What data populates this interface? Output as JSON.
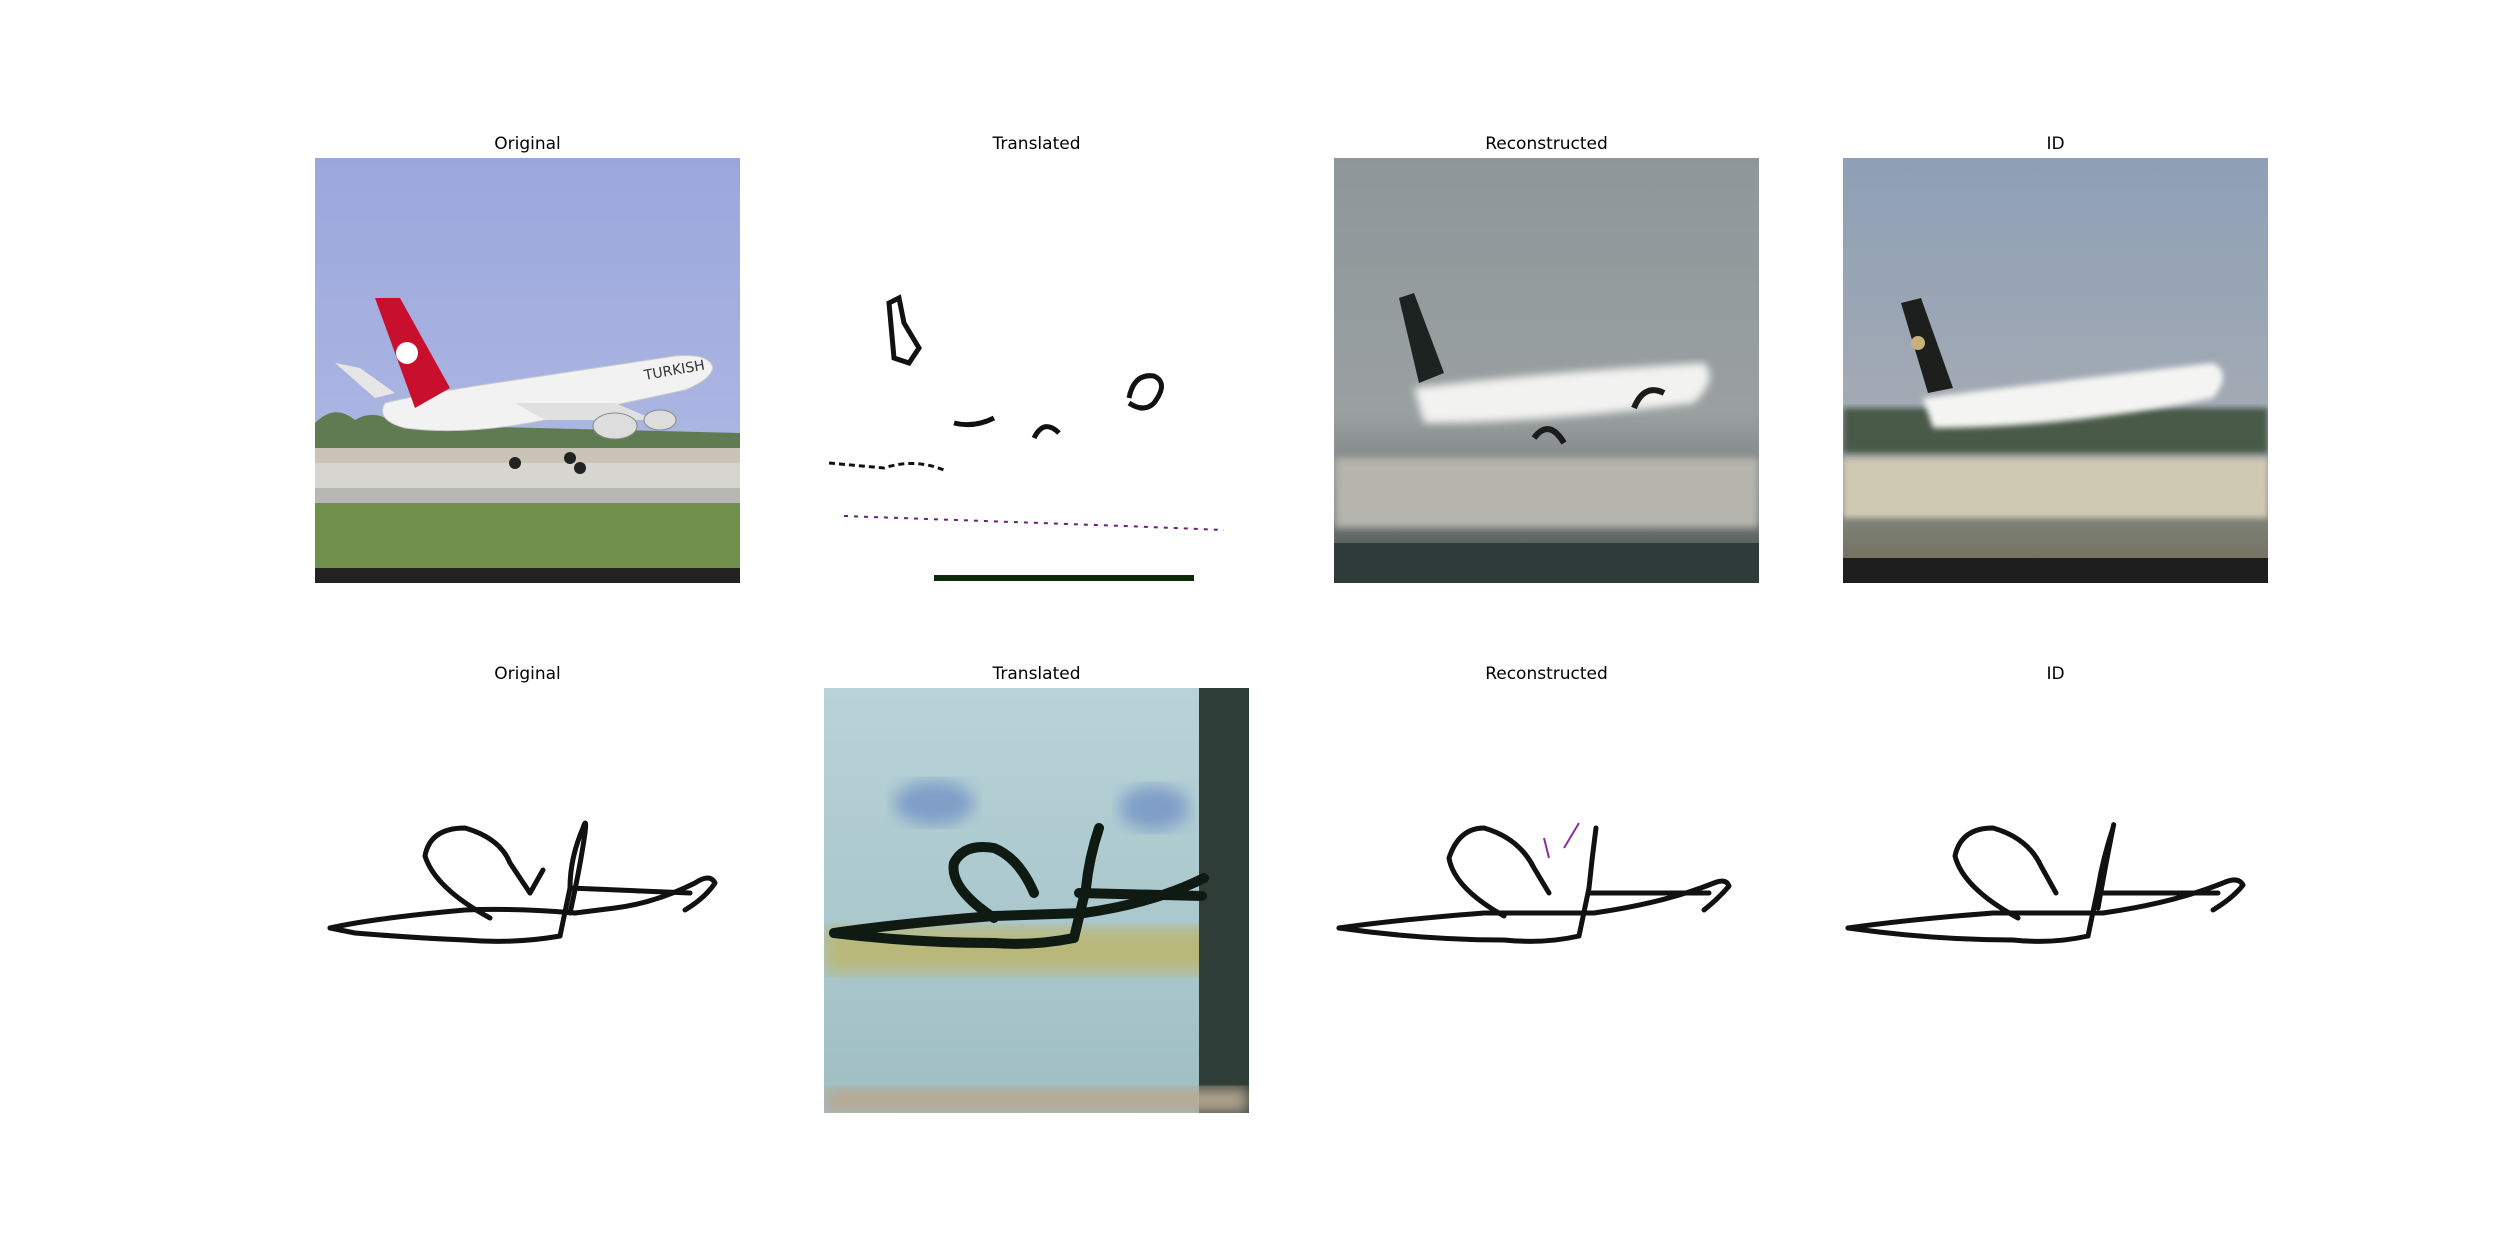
{
  "rows": [
    {
      "row": "photo-to-sketch",
      "titles": [
        "Original",
        "Translated",
        "Reconstructed",
        "ID"
      ],
      "images": [
        "airliner-photo",
        "sketch-from-photo",
        "reconstructed-photo",
        "identity-photo"
      ]
    },
    {
      "row": "sketch-to-photo",
      "titles": [
        "Original",
        "Translated",
        "Reconstructed",
        "ID"
      ],
      "images": [
        "airplane-sketch",
        "photo-from-sketch",
        "reconstructed-sketch",
        "identity-sketch"
      ]
    }
  ],
  "colors": {
    "sky": "#9faadb",
    "tail_red": "#c8102e",
    "grass": "#6b8a4a",
    "ink": "#111111"
  },
  "airline_text": "TURKISH"
}
